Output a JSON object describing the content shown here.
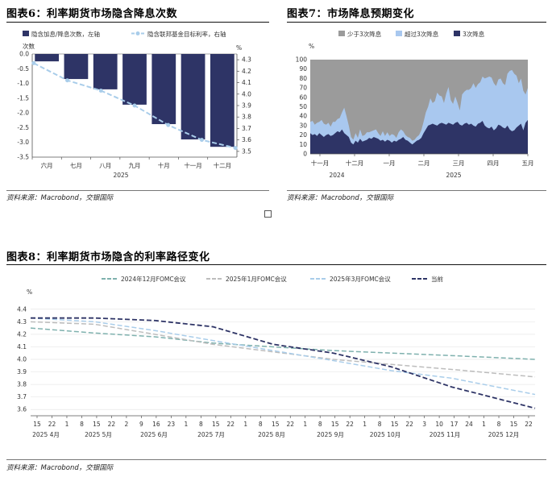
{
  "fig6": {
    "title": "图表6：利率期货市场隐含降息次数",
    "source": "资料来源：Macrobond，交银国际",
    "chart_data": {
      "type": "bar",
      "categories": [
        "六月",
        "七月",
        "八月",
        "九月",
        "十月",
        "十一月",
        "十二月"
      ],
      "year_label": "2025",
      "series": [
        {
          "name": "隐含加息/降息次数，左轴",
          "type": "bar",
          "axis": "left",
          "color": "#2e3466",
          "values": [
            -0.25,
            -0.85,
            -1.2,
            -1.72,
            -2.38,
            -2.9,
            -3.15
          ]
        },
        {
          "name": "隐含联邦基金目标利率，右轴",
          "type": "line",
          "axis": "right",
          "color": "#a9cdea",
          "values": [
            4.27,
            4.12,
            4.03,
            3.9,
            3.73,
            3.6,
            3.53
          ]
        }
      ],
      "ylabel_left": "次数",
      "ylabel_right": "%",
      "ylim_left": [
        -3.5,
        0.0
      ],
      "yticks_left": [
        "0.0",
        "-0.5",
        "-1.0",
        "-1.5",
        "-2.0",
        "-2.5",
        "-3.0",
        "-3.5"
      ],
      "ylim_right": [
        3.45,
        4.35
      ],
      "yticks_right": [
        "4.3",
        "4.2",
        "4.1",
        "4.0",
        "3.9",
        "3.8",
        "3.7",
        "3.6",
        "3.5"
      ],
      "legend_position": "top"
    }
  },
  "fig7": {
    "title": "图表7：市场降息预期变化",
    "source": "资料来源：Macrobond，交银国际",
    "chart_data": {
      "type": "area",
      "stacked": true,
      "ylabel": "%",
      "ylim": [
        0,
        100
      ],
      "yticks": [
        "100",
        "90",
        "80",
        "70",
        "60",
        "50",
        "40",
        "30",
        "20",
        "10",
        "0"
      ],
      "xticks": [
        "十一月",
        "十二月",
        "一月",
        "二月",
        "三月",
        "四月",
        "五月"
      ],
      "year_labels": [
        "2024",
        "2025"
      ],
      "series": [
        {
          "name": "少于3次降息",
          "color": "#9b9b9b"
        },
        {
          "name": "超过3次降息",
          "color": "#a9c8ef"
        },
        {
          "name": "3次降息",
          "color": "#2e3466"
        }
      ],
      "x": [
        0,
        3,
        6,
        9,
        12,
        15,
        18,
        21,
        24,
        27,
        30,
        33,
        36,
        39,
        42,
        45,
        48,
        51,
        54,
        57,
        60,
        63,
        66,
        69,
        72,
        75,
        78,
        81,
        84,
        87,
        90,
        93,
        96,
        99,
        102,
        105,
        108,
        111,
        114,
        117,
        120,
        123,
        126,
        129,
        132,
        135,
        138,
        141,
        144,
        147,
        150,
        153,
        156,
        159,
        162,
        165,
        168,
        171,
        174,
        177,
        180,
        183,
        186,
        189,
        192,
        195,
        198,
        201,
        204,
        207,
        210,
        213,
        216,
        219,
        222,
        225,
        228,
        231,
        234,
        237,
        240,
        243,
        246,
        249,
        252,
        255,
        258,
        261,
        264,
        267,
        270,
        273,
        276,
        279,
        282,
        285,
        288
      ],
      "three_cut": [
        22,
        20,
        21,
        19,
        22,
        20,
        18,
        20,
        21,
        19,
        20,
        22,
        24,
        23,
        26,
        22,
        20,
        18,
        12,
        10,
        14,
        12,
        16,
        13,
        14,
        15,
        17,
        16,
        18,
        17,
        16,
        14,
        15,
        13,
        15,
        14,
        12,
        14,
        13,
        15,
        16,
        18,
        15,
        14,
        12,
        10,
        12,
        14,
        15,
        17,
        22,
        26,
        30,
        31,
        32,
        31,
        30,
        32,
        33,
        32,
        31,
        33,
        32,
        31,
        33,
        34,
        31,
        30,
        32,
        33,
        31,
        32,
        30,
        29,
        32,
        33,
        35,
        30,
        28,
        27,
        29,
        25,
        27,
        31,
        30,
        28,
        27,
        30,
        26,
        24,
        25,
        28,
        30,
        32,
        25,
        33,
        36
      ],
      "over_three_cut": [
        12,
        15,
        10,
        14,
        12,
        16,
        14,
        11,
        12,
        10,
        14,
        12,
        13,
        15,
        18,
        27,
        20,
        12,
        6,
        5,
        8,
        5,
        10,
        6,
        6,
        8,
        6,
        8,
        7,
        9,
        6,
        5,
        9,
        6,
        8,
        5,
        9,
        6,
        4,
        8,
        10,
        6,
        5,
        4,
        5,
        4,
        3,
        4,
        5,
        8,
        12,
        18,
        20,
        28,
        22,
        25,
        35,
        30,
        28,
        22,
        33,
        38,
        25,
        22,
        28,
        20,
        15,
        33,
        34,
        35,
        37,
        38,
        45,
        41,
        42,
        43,
        47,
        50,
        53,
        55,
        52,
        50,
        45,
        48,
        50,
        47,
        46,
        55,
        62,
        65,
        60,
        55,
        45,
        48,
        42,
        30,
        34
      ]
    }
  },
  "fig8": {
    "title": "图表8：利率期货市场隐含的利率路径变化",
    "source": "资料来源：Macrobond，交银国际",
    "chart_data": {
      "type": "line",
      "ylabel": "%",
      "ylim": [
        3.55,
        4.45
      ],
      "yticks": [
        "4.4",
        "4.3",
        "4.2",
        "4.1",
        "4.0",
        "3.9",
        "3.8",
        "3.7",
        "3.6"
      ],
      "x_day_ticks": [
        "15",
        "22",
        "1",
        "8",
        "15",
        "22",
        "2",
        "9",
        "16",
        "23",
        "1",
        "8",
        "15",
        "22",
        "1",
        "8",
        "15",
        "22",
        "1",
        "8",
        "15",
        "22",
        "1",
        "8",
        "15",
        "22",
        "3",
        "10",
        "17",
        "24",
        "1",
        "8",
        "15",
        "22"
      ],
      "x_month_labels": [
        "2025 4月",
        "2025 5月",
        "2025 6月",
        "2025 7月",
        "2025 8月",
        "2025 9月",
        "2025 10月",
        "2025 11月",
        "2025 12月"
      ],
      "x": [
        "2025-04-12",
        "2025-05-15",
        "2025-06-15",
        "2025-07-15",
        "2025-08-15",
        "2025-09-15",
        "2025-10-15",
        "2025-11-15",
        "2025-12-28"
      ],
      "series": [
        {
          "name": "2024年12月FOMC会议",
          "color": "#7fb1ae",
          "dash": "6,3",
          "values": [
            4.25,
            4.21,
            4.18,
            4.13,
            4.1,
            4.07,
            4.05,
            4.03,
            4.0
          ]
        },
        {
          "name": "2025年1月FOMC会议",
          "color": "#bdbdbd",
          "dash": "6,3",
          "values": [
            4.3,
            4.28,
            4.2,
            4.12,
            4.06,
            4.0,
            3.96,
            3.92,
            3.86
          ]
        },
        {
          "name": "2025年3月FOMC会议",
          "color": "#a9cdea",
          "dash": "6,3",
          "values": [
            4.33,
            4.3,
            4.23,
            4.15,
            4.07,
            3.99,
            3.91,
            3.85,
            3.72
          ]
        },
        {
          "name": "当前",
          "color": "#2e3466",
          "dash": "6,3",
          "values": [
            4.33,
            4.33,
            4.31,
            4.26,
            4.12,
            4.05,
            3.94,
            3.78,
            3.61
          ]
        }
      ],
      "legend_position": "top"
    }
  }
}
